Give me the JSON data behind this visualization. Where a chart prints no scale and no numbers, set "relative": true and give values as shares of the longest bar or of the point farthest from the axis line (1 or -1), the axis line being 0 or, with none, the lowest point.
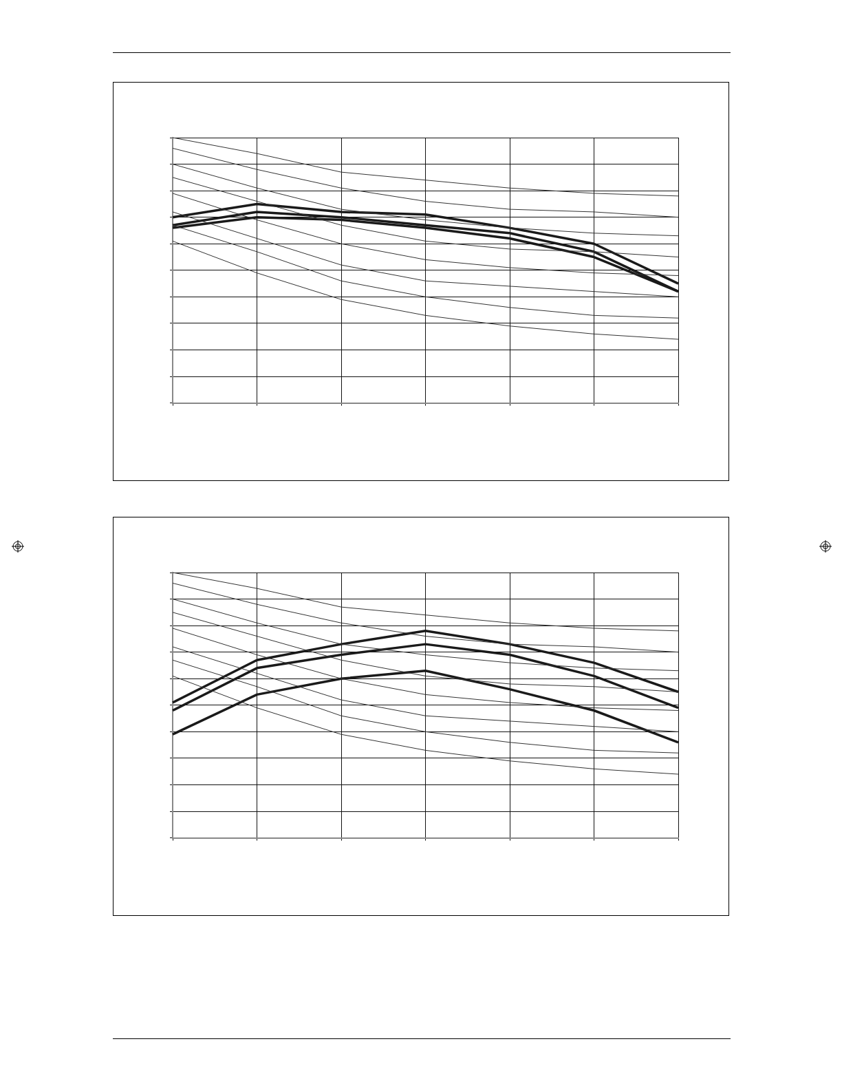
{
  "chart_data": [
    {
      "type": "line",
      "relative": true,
      "grid": true,
      "marker": "none",
      "line_style": "solid",
      "categories": [
        null,
        null,
        null,
        null,
        null,
        null,
        null
      ],
      "series": [
        {
          "color": "#333333",
          "values": [
            1,
            0.94,
            0.87,
            0.84,
            0.81,
            0.79,
            0.78
          ]
        },
        {
          "color": "#333333",
          "values": [
            0.96,
            0.88,
            0.81,
            0.76,
            0.73,
            0.72,
            0.7
          ]
        },
        {
          "color": "#333333",
          "values": [
            0.9,
            0.81,
            0.73,
            0.69,
            0.66,
            0.64,
            0.63
          ]
        },
        {
          "color": "#333333",
          "values": [
            0.85,
            0.76,
            0.67,
            0.61,
            0.58,
            0.57,
            0.55
          ]
        },
        {
          "color": "#333333",
          "values": [
            0.79,
            0.69,
            0.6,
            0.54,
            0.51,
            0.49,
            0.48
          ]
        },
        {
          "color": "#333333",
          "values": [
            0.72,
            0.62,
            0.52,
            0.46,
            0.44,
            0.42,
            0.4
          ]
        },
        {
          "color": "#333333",
          "values": [
            0.67,
            0.57,
            0.46,
            0.4,
            0.36,
            0.33,
            0.32
          ]
        },
        {
          "color": "#333333",
          "values": [
            0.61,
            0.49,
            0.39,
            0.33,
            0.29,
            0.26,
            0.24
          ]
        },
        {
          "color": "#1a1a1a",
          "values": [
            0.7,
            0.75,
            0.72,
            0.71,
            0.66,
            0.6,
            0.45
          ]
        },
        {
          "color": "#1a1a1a",
          "values": [
            0.67,
            0.72,
            0.7,
            0.67,
            0.64,
            0.57,
            0.42
          ]
        },
        {
          "color": "#1a1a1a",
          "values": [
            0.66,
            0.7,
            0.69,
            0.66,
            0.62,
            0.55,
            0.42
          ]
        }
      ]
    },
    {
      "type": "line",
      "relative": true,
      "grid": true,
      "marker": "none",
      "line_style": "solid",
      "categories": [
        null,
        null,
        null,
        null,
        null,
        null,
        null
      ],
      "series": [
        {
          "color": "#333333",
          "values": [
            1,
            0.94,
            0.87,
            0.84,
            0.81,
            0.79,
            0.78
          ]
        },
        {
          "color": "#333333",
          "values": [
            0.96,
            0.88,
            0.81,
            0.76,
            0.73,
            0.72,
            0.7
          ]
        },
        {
          "color": "#333333",
          "values": [
            0.9,
            0.81,
            0.73,
            0.69,
            0.66,
            0.64,
            0.63
          ]
        },
        {
          "color": "#333333",
          "values": [
            0.85,
            0.76,
            0.67,
            0.61,
            0.58,
            0.57,
            0.55
          ]
        },
        {
          "color": "#333333",
          "values": [
            0.79,
            0.69,
            0.6,
            0.54,
            0.51,
            0.49,
            0.48
          ]
        },
        {
          "color": "#333333",
          "values": [
            0.72,
            0.62,
            0.52,
            0.46,
            0.44,
            0.42,
            0.4
          ]
        },
        {
          "color": "#333333",
          "values": [
            0.67,
            0.57,
            0.46,
            0.4,
            0.36,
            0.33,
            0.32
          ]
        },
        {
          "color": "#333333",
          "values": [
            0.61,
            0.49,
            0.39,
            0.33,
            0.29,
            0.26,
            0.24
          ]
        },
        {
          "color": "#1a1a1a",
          "values": [
            0.51,
            0.67,
            0.73,
            0.78,
            0.73,
            0.66,
            0.55
          ]
        },
        {
          "color": "#1a1a1a",
          "values": [
            0.48,
            0.64,
            0.69,
            0.73,
            0.69,
            0.61,
            0.49
          ]
        },
        {
          "color": "#1a1a1a",
          "values": [
            0.39,
            0.54,
            0.6,
            0.63,
            0.56,
            0.48,
            0.36
          ]
        }
      ]
    }
  ]
}
